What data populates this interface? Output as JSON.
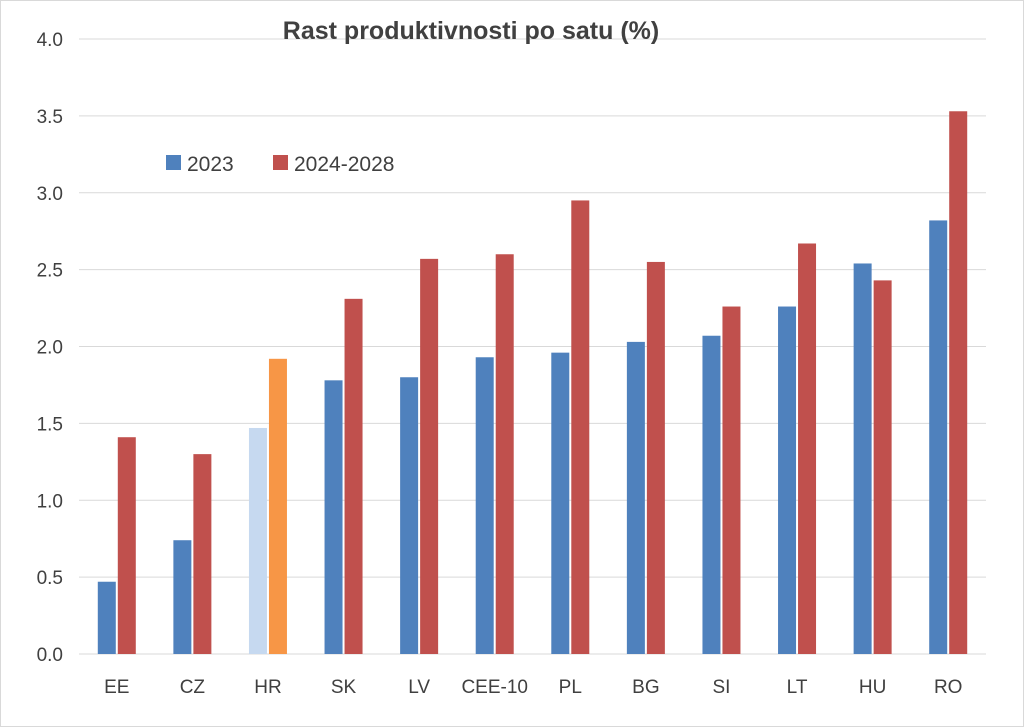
{
  "chart_data": {
    "type": "bar",
    "title": "Rast produktivnosti po satu (%)",
    "xlabel": "",
    "ylabel": "",
    "ylim": [
      0,
      4
    ],
    "yticks": [
      "0.0",
      "0.5",
      "1.0",
      "1.5",
      "2.0",
      "2.5",
      "3.0",
      "3.5",
      "4.0"
    ],
    "grid": true,
    "legend_position": "top-left",
    "categories": [
      "EE",
      "CZ",
      "HR",
      "SK",
      "LV",
      "CEE-10",
      "PL",
      "BG",
      "SI",
      "LT",
      "HU",
      "RO"
    ],
    "series": [
      {
        "name": "2023",
        "color": "#4f81bd",
        "highlight_color": "#c6d9f0",
        "values": [
          0.47,
          0.74,
          1.47,
          1.78,
          1.8,
          1.93,
          1.96,
          2.03,
          2.07,
          2.26,
          2.54,
          2.82
        ]
      },
      {
        "name": "2024-2028",
        "color": "#c0504d",
        "highlight_color": "#f79646",
        "values": [
          1.41,
          1.3,
          1.92,
          2.31,
          2.57,
          2.6,
          2.95,
          2.55,
          2.26,
          2.67,
          2.43,
          3.53
        ]
      }
    ],
    "highlight_category": "HR",
    "grid_color": "#d9d9d9"
  }
}
